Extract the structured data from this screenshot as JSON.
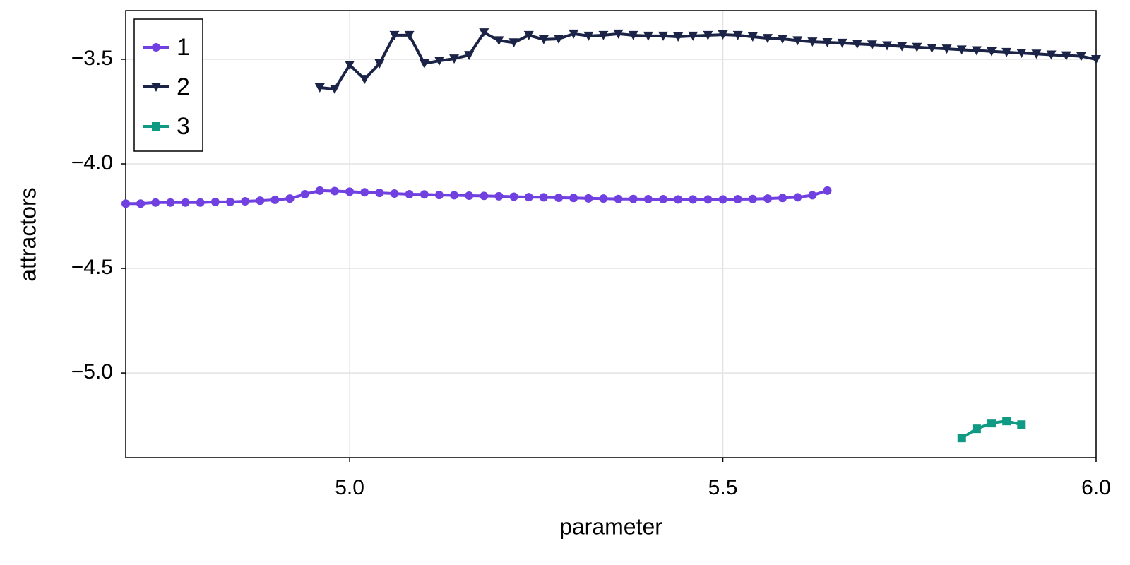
{
  "chart_data": {
    "type": "line",
    "x_label": "parameter",
    "y_label": "attractors",
    "xlim": [
      4.7,
      6.0
    ],
    "ylim": [
      -5.405,
      -3.267
    ],
    "xticks": [
      {
        "value": 5.0,
        "label": "5.0"
      },
      5.5,
      {
        "value": 6.0,
        "label": "6.0"
      }
    ],
    "yticks": [
      {
        "value": -3.5,
        "label": "−3.5"
      },
      {
        "value": -4.0,
        "label": "−4.0"
      },
      {
        "value": -4.5,
        "label": "−4.5"
      },
      {
        "value": -5.0,
        "label": "−5.0"
      }
    ],
    "grid": true,
    "legend": "top-left",
    "series": [
      {
        "name": "1",
        "color": "#7140e0",
        "marker": "circle",
        "x": [
          4.7,
          4.72,
          4.74,
          4.76,
          4.78,
          4.8,
          4.82,
          4.84,
          4.86,
          4.88,
          4.9,
          4.92,
          4.94,
          4.96,
          4.98,
          5.0,
          5.02,
          5.04,
          5.06,
          5.08,
          5.1,
          5.12,
          5.14,
          5.16,
          5.18,
          5.2,
          5.22,
          5.24,
          5.26,
          5.28,
          5.3,
          5.32,
          5.34,
          5.36,
          5.38,
          5.4,
          5.42,
          5.44,
          5.46,
          5.48,
          5.5,
          5.52,
          5.54,
          5.56,
          5.58,
          5.6,
          5.62,
          5.64
        ],
        "values": [
          -4.19,
          -4.19,
          -4.185,
          -4.185,
          -4.185,
          -4.185,
          -4.182,
          -4.182,
          -4.179,
          -4.176,
          -4.172,
          -4.166,
          -4.145,
          -4.128,
          -4.13,
          -4.133,
          -4.136,
          -4.139,
          -4.142,
          -4.145,
          -4.146,
          -4.149,
          -4.15,
          -4.152,
          -4.153,
          -4.155,
          -4.157,
          -4.159,
          -4.16,
          -4.162,
          -4.163,
          -4.165,
          -4.166,
          -4.168,
          -4.168,
          -4.169,
          -4.169,
          -4.17,
          -4.17,
          -4.17,
          -4.17,
          -4.169,
          -4.168,
          -4.166,
          -4.163,
          -4.16,
          -4.15,
          -4.128
        ]
      },
      {
        "name": "2",
        "color": "#1b2447",
        "marker": "triangle-down",
        "x": [
          4.96,
          4.98,
          5.0,
          5.02,
          5.04,
          5.06,
          5.08,
          5.1,
          5.12,
          5.14,
          5.16,
          5.18,
          5.2,
          5.22,
          5.24,
          5.26,
          5.28,
          5.3,
          5.32,
          5.34,
          5.36,
          5.38,
          5.4,
          5.42,
          5.44,
          5.46,
          5.48,
          5.5,
          5.52,
          5.54,
          5.56,
          5.58,
          5.6,
          5.62,
          5.64,
          5.66,
          5.68,
          5.7,
          5.72,
          5.74,
          5.76,
          5.78,
          5.8,
          5.82,
          5.84,
          5.86,
          5.88,
          5.9,
          5.92,
          5.94,
          5.96,
          5.98,
          6.0
        ],
        "values": [
          -3.635,
          -3.642,
          -3.527,
          -3.595,
          -3.52,
          -3.385,
          -3.385,
          -3.52,
          -3.507,
          -3.497,
          -3.48,
          -3.372,
          -3.41,
          -3.42,
          -3.385,
          -3.405,
          -3.402,
          -3.378,
          -3.388,
          -3.385,
          -3.378,
          -3.385,
          -3.388,
          -3.388,
          -3.392,
          -3.388,
          -3.385,
          -3.382,
          -3.385,
          -3.392,
          -3.399,
          -3.402,
          -3.41,
          -3.416,
          -3.419,
          -3.422,
          -3.426,
          -3.43,
          -3.434,
          -3.438,
          -3.442,
          -3.446,
          -3.45,
          -3.454,
          -3.458,
          -3.462,
          -3.466,
          -3.47,
          -3.474,
          -3.478,
          -3.482,
          -3.485,
          -3.5
        ]
      },
      {
        "name": "3",
        "color": "#119a83",
        "marker": "square",
        "x": [
          5.82,
          5.84,
          5.86,
          5.88,
          5.9
        ],
        "values": [
          -5.311,
          -5.267,
          -5.24,
          -5.23,
          -5.247
        ]
      }
    ]
  }
}
